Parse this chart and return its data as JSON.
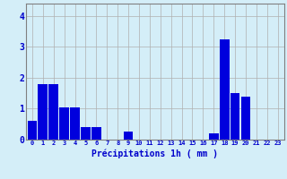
{
  "values": [
    0.6,
    1.8,
    1.8,
    1.05,
    1.05,
    0.4,
    0.4,
    0.0,
    0.0,
    0.25,
    0.0,
    0.0,
    0.0,
    0.0,
    0.0,
    0.0,
    0.0,
    0.2,
    3.25,
    1.5,
    1.4,
    0.0,
    0.0,
    0.0
  ],
  "x_labels": [
    "0",
    "1",
    "2",
    "3",
    "4",
    "5",
    "6",
    "7",
    "8",
    "9",
    "10",
    "11",
    "12",
    "13",
    "14",
    "15",
    "16",
    "17",
    "18",
    "19",
    "20",
    "21",
    "22",
    "23"
  ],
  "xlabel": "Précipitations 1h ( mm )",
  "ylim": [
    0,
    4.4
  ],
  "yticks": [
    0,
    1,
    2,
    3,
    4
  ],
  "bar_color": "#0000dd",
  "background_color": "#d4eef8",
  "grid_color": "#b0b0b0",
  "spine_color": "#808080"
}
